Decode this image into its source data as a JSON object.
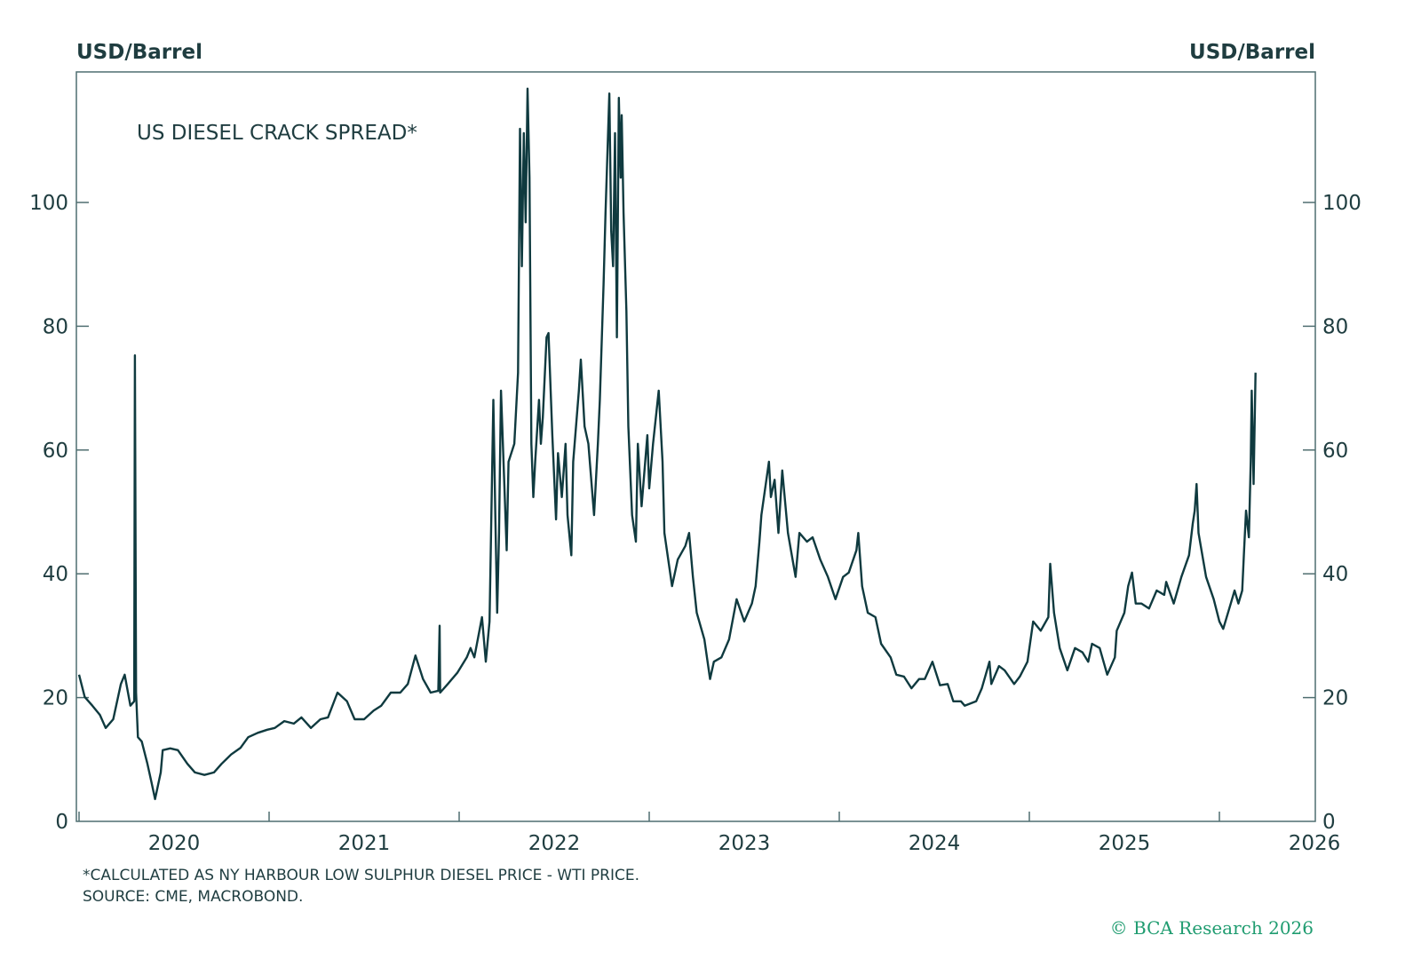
{
  "chart_data": {
    "type": "line",
    "title": "US DIESEL CRACK SPREAD*",
    "ylabel_left": "USD/Barrel",
    "ylabel_right": "USD/Barrel",
    "xlabel": "",
    "xlim": [
      2019.5,
      2026.0
    ],
    "ylim": [
      0,
      121
    ],
    "yticks": [
      0,
      20,
      40,
      60,
      80,
      100
    ],
    "ytick_labels": [
      "0",
      "20",
      "40",
      "60",
      "80",
      "100"
    ],
    "xtick_labels": [
      "2020",
      "2021",
      "2022",
      "2023",
      "2024",
      "2025",
      "2026"
    ],
    "xtick_label_years": [
      2020,
      2021,
      2022,
      2023,
      2024,
      2025,
      2026
    ],
    "xtick_marks": [
      2019.5,
      2020.5,
      2021.5,
      2022.5,
      2023.5,
      2024.5,
      2025.5
    ],
    "grid": false,
    "series": [
      {
        "name": "US Diesel Crack Spread",
        "color": "#0f3a3f",
        "x": [
          2019.5,
          2019.53,
          2019.57,
          2019.61,
          2019.64,
          2019.68,
          2019.72,
          2019.74,
          2019.77,
          2019.79,
          2019.794,
          2019.8,
          2019.81,
          2019.83,
          2019.86,
          2019.88,
          2019.9,
          2019.93,
          2019.94,
          2019.98,
          2020.02,
          2020.07,
          2020.11,
          2020.16,
          2020.21,
          2020.25,
          2020.3,
          2020.35,
          2020.39,
          2020.44,
          2020.49,
          2020.53,
          2020.58,
          2020.63,
          2020.67,
          2020.72,
          2020.77,
          2020.81,
          2020.86,
          2020.91,
          2020.95,
          2021.0,
          2021.05,
          2021.09,
          2021.14,
          2021.19,
          2021.23,
          2021.27,
          2021.31,
          2021.35,
          2021.39,
          2021.397,
          2021.4,
          2021.44,
          2021.49,
          2021.54,
          2021.56,
          2021.58,
          2021.62,
          2021.64,
          2021.66,
          2021.68,
          2021.69,
          2021.7,
          2021.71,
          2021.72,
          2021.75,
          2021.76,
          2021.79,
          2021.81,
          2021.82,
          2021.83,
          2021.84,
          2021.85,
          2021.86,
          2021.87,
          2021.88,
          2021.89,
          2021.9,
          2021.92,
          2021.93,
          2021.94,
          2021.96,
          2021.97,
          2021.99,
          2022.01,
          2022.02,
          2022.04,
          2022.06,
          2022.07,
          2022.09,
          2022.1,
          2022.13,
          2022.14,
          2022.16,
          2022.18,
          2022.21,
          2022.23,
          2022.24,
          2022.26,
          2022.27,
          2022.29,
          2022.3,
          2022.31,
          2022.32,
          2022.33,
          2022.34,
          2022.35,
          2022.355,
          2022.365,
          2022.38,
          2022.39,
          2022.41,
          2022.43,
          2022.44,
          2022.46,
          2022.49,
          2022.5,
          2022.52,
          2022.55,
          2022.57,
          2022.58,
          2022.62,
          2022.65,
          2022.69,
          2022.71,
          2022.73,
          2022.75,
          2022.79,
          2022.82,
          2022.84,
          2022.88,
          2022.92,
          2022.96,
          2023.0,
          2023.04,
          2023.06,
          2023.08,
          2023.09,
          2023.13,
          2023.14,
          2023.16,
          2023.18,
          2023.2,
          2023.23,
          2023.27,
          2023.29,
          2023.33,
          2023.36,
          2023.4,
          2023.44,
          2023.48,
          2023.52,
          2023.55,
          2023.59,
          2023.6,
          2023.62,
          2023.65,
          2023.69,
          2023.72,
          2023.77,
          2023.8,
          2023.84,
          2023.88,
          2023.92,
          2023.95,
          2023.99,
          2024.03,
          2024.07,
          2024.1,
          2024.14,
          2024.16,
          2024.22,
          2024.25,
          2024.29,
          2024.3,
          2024.34,
          2024.37,
          2024.42,
          2024.45,
          2024.49,
          2024.52,
          2024.56,
          2024.6,
          2024.61,
          2024.63,
          2024.66,
          2024.7,
          2024.74,
          2024.78,
          2024.81,
          2024.83,
          2024.87,
          2024.91,
          2024.95,
          2024.96,
          2025.0,
          2025.02,
          2025.04,
          2025.06,
          2025.09,
          2025.13,
          2025.17,
          2025.21,
          2025.22,
          2025.26,
          2025.3,
          2025.34,
          2025.36,
          2025.37,
          2025.38,
          2025.39,
          2025.43,
          2025.47,
          2025.5,
          2025.52,
          2025.56,
          2025.58,
          2025.6,
          2025.62,
          2025.63,
          2025.64,
          2025.655,
          2025.665,
          2025.67,
          2025.68,
          2025.69
        ],
        "values": [
          23.7,
          20.1,
          18.7,
          17.2,
          15.1,
          16.5,
          22.2,
          23.7,
          18.7,
          19.4,
          75.3,
          20.8,
          13.6,
          12.9,
          9.3,
          6.5,
          3.6,
          7.9,
          11.5,
          11.8,
          11.5,
          9.3,
          7.9,
          7.5,
          7.9,
          9.3,
          10.8,
          11.9,
          13.6,
          14.3,
          14.8,
          15.1,
          16.2,
          15.8,
          16.8,
          15.1,
          16.5,
          16.8,
          20.8,
          19.4,
          16.5,
          16.5,
          17.9,
          18.7,
          20.8,
          20.8,
          22.2,
          26.8,
          23.0,
          20.8,
          21.1,
          31.6,
          20.8,
          22.2,
          24.0,
          26.5,
          28.0,
          26.5,
          33.0,
          25.8,
          32.3,
          68.1,
          49.5,
          33.7,
          46.6,
          69.6,
          43.8,
          58.1,
          61.0,
          72.5,
          111.9,
          89.7,
          111.2,
          96.8,
          118.4,
          104.0,
          61.0,
          52.4,
          58.1,
          68.1,
          61.0,
          65.3,
          78.2,
          78.9,
          62.4,
          48.8,
          59.5,
          52.4,
          61.0,
          49.5,
          43.0,
          58.1,
          69.6,
          74.6,
          63.8,
          61.0,
          49.5,
          61.0,
          68.1,
          86.8,
          98.3,
          117.6,
          95.4,
          89.7,
          111.2,
          78.2,
          116.9,
          104.0,
          114.1,
          98.3,
          82.5,
          63.8,
          49.5,
          45.2,
          61.0,
          50.9,
          62.4,
          53.8,
          61.0,
          69.6,
          58.1,
          46.6,
          38.0,
          42.3,
          44.5,
          46.6,
          39.5,
          33.7,
          29.4,
          23.0,
          25.8,
          26.5,
          29.4,
          35.9,
          32.3,
          35.2,
          38.0,
          45.2,
          49.5,
          58.1,
          52.4,
          55.2,
          46.6,
          56.7,
          46.6,
          39.5,
          46.6,
          45.2,
          45.9,
          42.3,
          39.5,
          35.9,
          39.5,
          40.2,
          43.8,
          46.6,
          38.0,
          33.7,
          33.0,
          28.7,
          26.5,
          23.7,
          23.4,
          21.5,
          23.0,
          23.0,
          25.8,
          22.0,
          22.2,
          19.4,
          19.4,
          18.7,
          19.4,
          21.5,
          25.8,
          22.2,
          25.1,
          24.4,
          22.2,
          23.4,
          25.8,
          32.3,
          30.8,
          33.0,
          41.6,
          33.7,
          28.0,
          24.4,
          28.0,
          27.3,
          25.8,
          28.7,
          28.0,
          23.7,
          26.5,
          30.8,
          33.7,
          38.0,
          40.2,
          35.2,
          35.2,
          34.4,
          37.3,
          36.6,
          38.7,
          35.2,
          39.5,
          43.0,
          48.1,
          50.2,
          54.5,
          46.6,
          39.5,
          35.9,
          32.3,
          31.1,
          35.2,
          37.3,
          35.2,
          37.3,
          43.8,
          50.2,
          45.9,
          58.1,
          69.6,
          54.5,
          72.5
        ]
      }
    ],
    "footnotes": [
      "*CALCULATED AS NY HARBOUR LOW SULPHUR DIESEL PRICE - WTI PRICE.",
      "SOURCE: CME, MACROBOND."
    ],
    "copyright": "© BCA Research 2026"
  }
}
